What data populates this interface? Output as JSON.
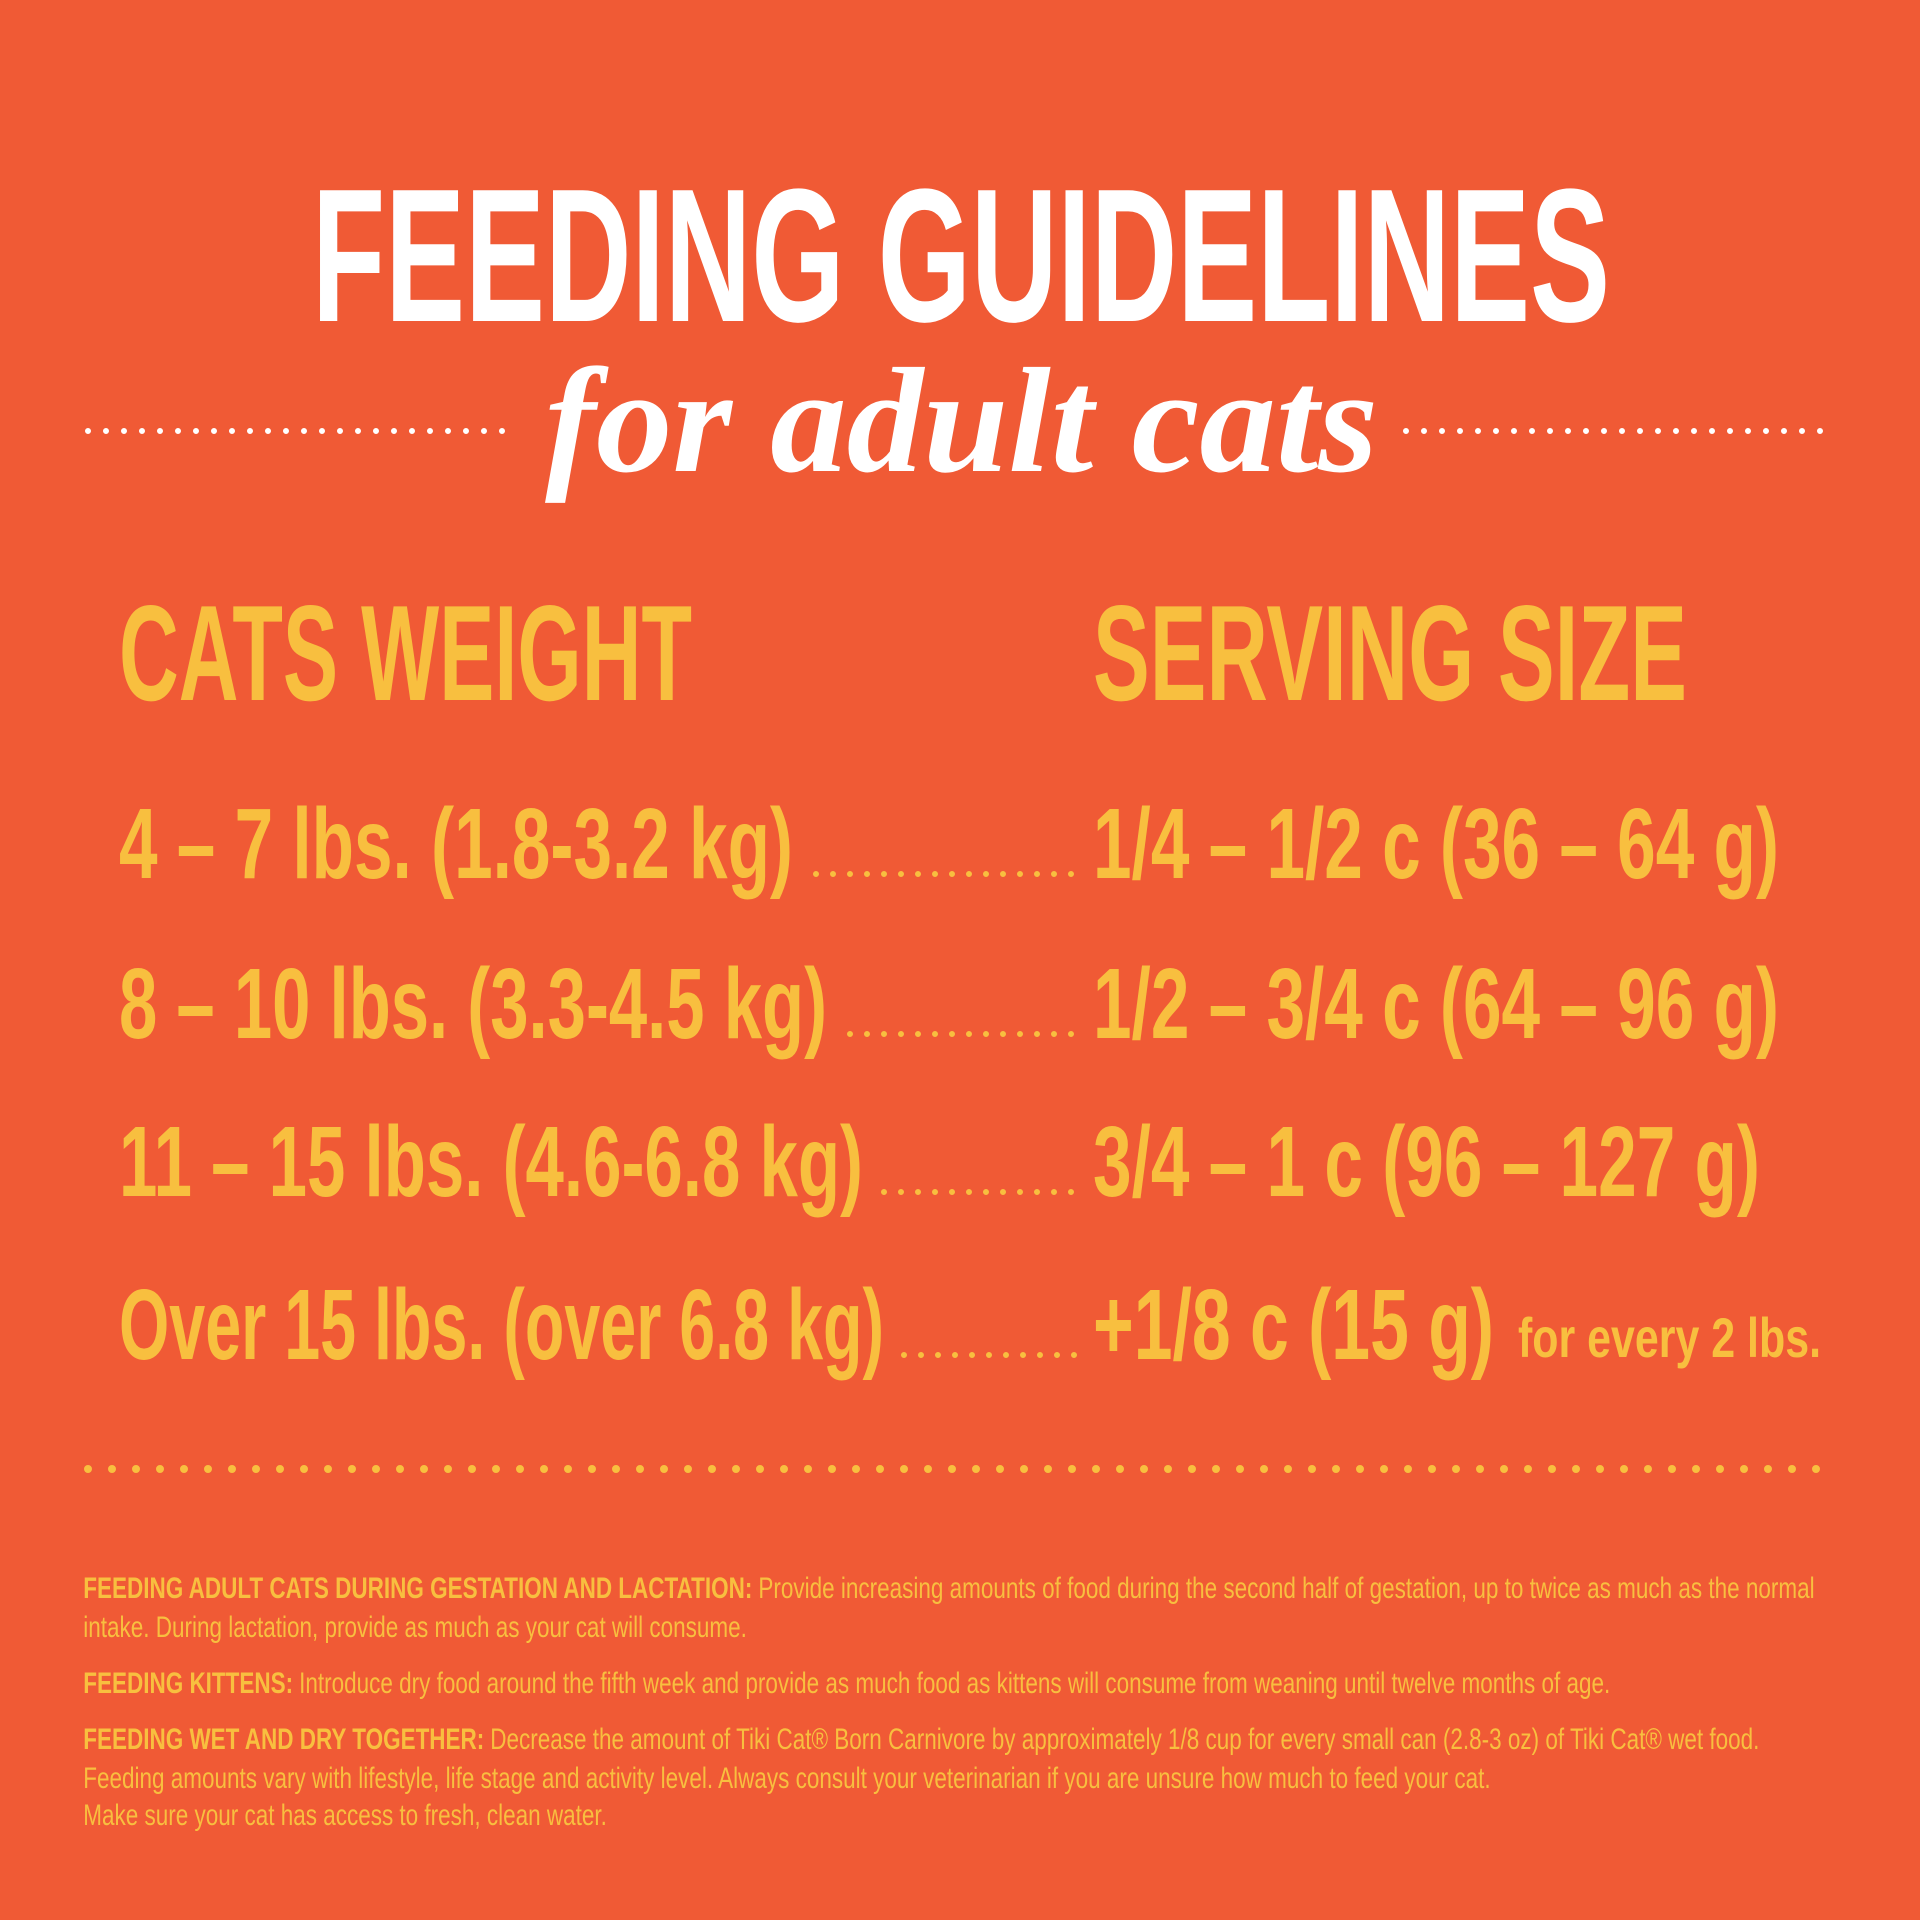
{
  "title": "FEEDING GUIDELINES",
  "subtitle": "for adult cats",
  "table": {
    "headers": [
      "CATS WEIGHT",
      "SERVING SIZE"
    ],
    "rows": [
      {
        "weight": "4 – 7 lbs. (1.8-3.2 kg)",
        "serving": "1/4 – 1/2 c (36 – 64 g)"
      },
      {
        "weight": "8 – 10 lbs. (3.3-4.5 kg)",
        "serving": "1/2 – 3/4 c (64 – 96 g)"
      },
      {
        "weight": "11 – 15 lbs. (4.6-6.8 kg)",
        "serving": "3/4 – 1 c (96 – 127 g)"
      },
      {
        "weight": "Over 15 lbs. (over 6.8 kg)",
        "serving": "+1/8 c (15 g)",
        "serving_note": "for every 2 lbs."
      }
    ]
  },
  "notes": [
    {
      "label": "FEEDING ADULT CATS DURING GESTATION AND LACTATION:",
      "lines": [
        "Provide increasing amounts of food during the second half of gestation, up to twice as much as the normal",
        "intake.  During lactation, provide as much as your cat will consume."
      ]
    },
    {
      "label": "FEEDING KITTENS:",
      "lines": [
        "Introduce dry food around the fifth week and provide as much food as kittens will consume from weaning until twelve months of age."
      ]
    },
    {
      "label": "FEEDING WET AND DRY TOGETHER:",
      "lines": [
        "Decrease the amount of Tiki Cat® Born Carnivore by approximately 1/8 cup for every small can (2.8-3 oz) of Tiki Cat® wet food.",
        "Feeding amounts vary with lifestyle, life stage and activity level.  Always consult your veterinarian if you are unsure how much to feed your cat.",
        "Make sure your cat has access to fresh, clean water."
      ]
    }
  ]
}
